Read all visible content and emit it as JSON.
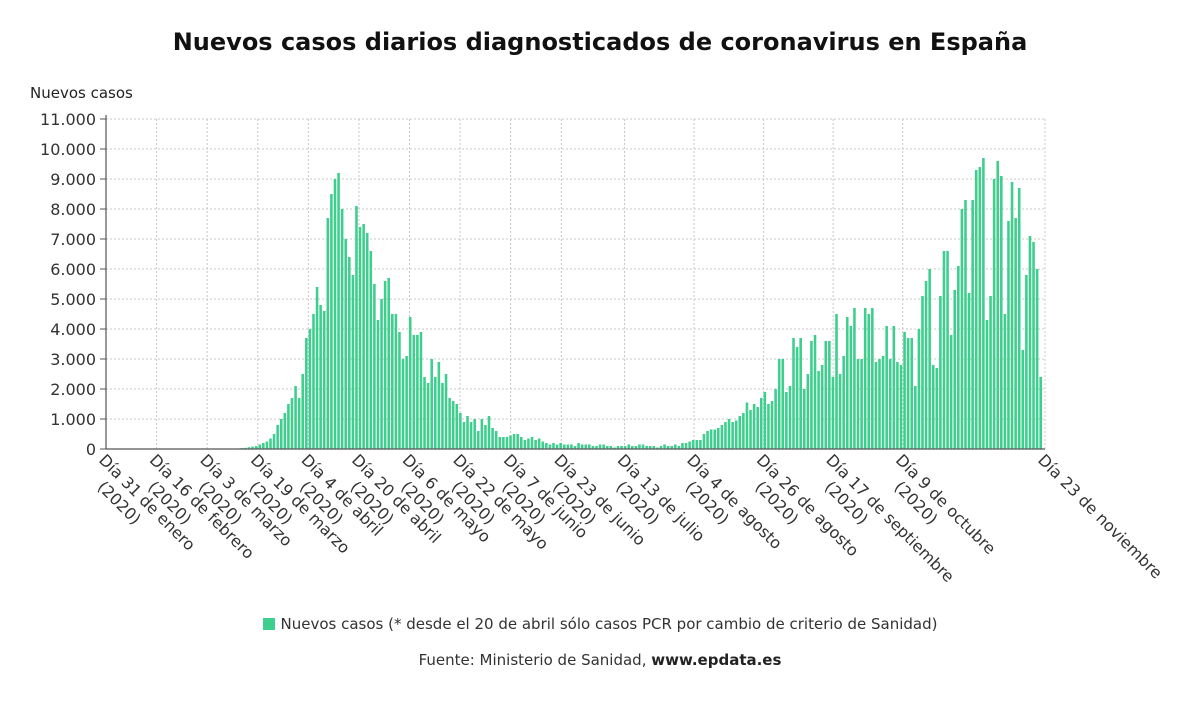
{
  "title": "Nuevos casos diarios diagnosticados de coronavirus en España",
  "source": {
    "prefix": "Fuente: Ministerio de Sanidad, ",
    "site": "www.epdata.es"
  },
  "colors": {
    "bar": "#3ecf8e",
    "grid": "#c8c8c8",
    "axis": "#555555"
  },
  "chart_data": {
    "type": "bar",
    "ylabel": "Nuevos casos",
    "ylim": [
      0,
      11000
    ],
    "yticks": [
      "0",
      "1.000",
      "2.000",
      "3.000",
      "4.000",
      "5.000",
      "6.000",
      "7.000",
      "8.000",
      "9.000",
      "10.000",
      "11.000"
    ],
    "ytick_values": [
      0,
      1000,
      2000,
      3000,
      4000,
      5000,
      6000,
      7000,
      8000,
      9000,
      10000,
      11000
    ],
    "grid": true,
    "legend_position": "bottom",
    "x_start": "2020-01-31",
    "x_end": "2020-11-23",
    "xticks": [
      {
        "label": "Día 31 de enero (2020)",
        "date": "2020-01-31"
      },
      {
        "label": "Día 16 de febrero (2020)",
        "date": "2020-02-16"
      },
      {
        "label": "Día 3 de marzo (2020)",
        "date": "2020-03-03"
      },
      {
        "label": "Día 19 de marzo (2020)",
        "date": "2020-03-19"
      },
      {
        "label": "Día 4 de abril (2020)",
        "date": "2020-04-04"
      },
      {
        "label": "Día 20 de abril (2020)",
        "date": "2020-04-20"
      },
      {
        "label": "Día 6 de mayo (2020)",
        "date": "2020-05-06"
      },
      {
        "label": "Día 22 de mayo (2020)",
        "date": "2020-05-22"
      },
      {
        "label": "Día 7 de junio (2020)",
        "date": "2020-06-07"
      },
      {
        "label": "Día 23 de junio (2020)",
        "date": "2020-06-23"
      },
      {
        "label": "Día 13 de julio (2020)",
        "date": "2020-07-13"
      },
      {
        "label": "Día 4 de agosto (2020)",
        "date": "2020-08-04"
      },
      {
        "label": "Día 26 de agosto (2020)",
        "date": "2020-08-26"
      },
      {
        "label": "Día 17 de septiembre (2020)",
        "date": "2020-09-17"
      },
      {
        "label": "Día 9 de octubre (2020)",
        "date": "2020-10-09"
      },
      {
        "label": "Día 23 de noviembre",
        "date": "2020-11-23"
      }
    ],
    "series": [
      {
        "name": "Nuevos casos (* desde el 20 de abril sólo casos PCR por cambio de criterio de Sanidad)",
        "values": [
          0,
          0,
          0,
          0,
          0,
          0,
          0,
          0,
          0,
          0,
          0,
          0,
          0,
          0,
          0,
          0,
          0,
          0,
          0,
          0,
          0,
          0,
          0,
          0,
          0,
          0,
          0,
          0,
          0,
          0,
          0,
          1,
          2,
          3,
          5,
          10,
          20,
          30,
          40,
          60,
          80,
          100,
          150,
          200,
          250,
          350,
          500,
          800,
          1000,
          1200,
          1500,
          1700,
          2100,
          1700,
          2500,
          3700,
          4000,
          4500,
          5400,
          4800,
          4600,
          7700,
          8500,
          9000,
          9200,
          8000,
          7000,
          6400,
          5800,
          8100,
          7400,
          7500,
          7200,
          6600,
          5500,
          4300,
          5000,
          5600,
          5700,
          4500,
          4500,
          3900,
          3000,
          3100,
          4400,
          3800,
          3800,
          3900,
          2400,
          2200,
          3000,
          2400,
          2900,
          2200,
          2500,
          1700,
          1600,
          1500,
          1200,
          900,
          1100,
          900,
          1000,
          600,
          1000,
          800,
          1100,
          700,
          600,
          400,
          400,
          400,
          450,
          500,
          500,
          400,
          300,
          350,
          400,
          300,
          350,
          250,
          200,
          150,
          200,
          150,
          200,
          150,
          150,
          150,
          100,
          200,
          150,
          150,
          150,
          100,
          100,
          150,
          150,
          100,
          100,
          50,
          100,
          100,
          100,
          150,
          100,
          100,
          150,
          150,
          100,
          100,
          100,
          50,
          100,
          150,
          100,
          100,
          150,
          100,
          200,
          200,
          250,
          300,
          300,
          300,
          500,
          600,
          650,
          650,
          700,
          800,
          900,
          1000,
          900,
          950,
          1100,
          1200,
          1550,
          1300,
          1500,
          1400,
          1700,
          1900,
          1500,
          1600,
          2000,
          3000,
          3000,
          1900,
          2100,
          3700,
          3400,
          3700,
          2000,
          2500,
          3600,
          3800,
          2600,
          2800,
          3600,
          3600,
          2400,
          4500,
          2500,
          3100,
          4400,
          4100,
          4700,
          3000,
          3000,
          4700,
          4500,
          4700,
          2900,
          3000,
          3100,
          4100,
          3000,
          4100,
          2900,
          2800,
          3900,
          3700,
          3700,
          2100,
          4000,
          5100,
          5600,
          6000,
          2800,
          2700,
          5100,
          6600,
          6600,
          3800,
          5300,
          6100,
          8000,
          8300,
          5200,
          8300,
          9300,
          9400,
          9700,
          4300,
          5100,
          9000,
          9600,
          9100,
          4500,
          7600,
          8900,
          7700,
          8700,
          3300,
          5800,
          7100,
          6900,
          6000,
          2400
        ]
      }
    ]
  }
}
